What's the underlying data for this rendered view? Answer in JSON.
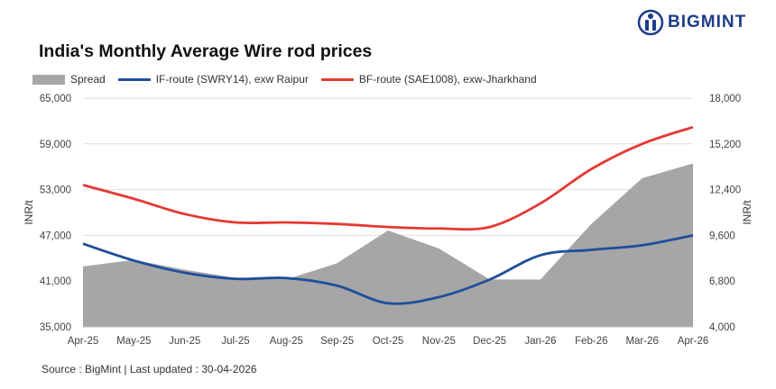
{
  "brand": {
    "name": "BIGMINT",
    "color": "#1f3c88"
  },
  "source_text": "Source : BigMint | Last updated : 30-04-2026",
  "chart_data": {
    "type": "line",
    "title": "India's Monthly Average Wire rod prices",
    "categories": [
      "Apr-25",
      "May-25",
      "Jun-25",
      "Jul-25",
      "Aug-25",
      "Sep-25",
      "Oct-25",
      "Nov-25",
      "Dec-25",
      "Jan-26",
      "Feb-26",
      "Mar-26",
      "Apr-26"
    ],
    "ylabel_left": "INR/t",
    "ylabel_right": "INR/t",
    "ylim_left": [
      35000,
      65000
    ],
    "ylim_right": [
      4000,
      18000
    ],
    "yticks_left": [
      "35,000",
      "41,000",
      "47,000",
      "53,000",
      "59,000",
      "65,000"
    ],
    "yticks_right": [
      "4,000",
      "6,800",
      "9,600",
      "12,400",
      "15,200",
      "18,000"
    ],
    "grid": true,
    "legend_position": "top-left",
    "series": [
      {
        "name": "Spread",
        "kind": "area",
        "axis": "right",
        "color": "#a6a6a6",
        "values": [
          7700,
          8100,
          7500,
          7000,
          6900,
          7900,
          9900,
          8800,
          6900,
          6900,
          10300,
          13100,
          14000
        ]
      },
      {
        "name": "IF-route (SWRY14), exw Raipur",
        "kind": "line",
        "axis": "left",
        "color": "#1f4e9b",
        "values": [
          45900,
          43700,
          42100,
          41300,
          41400,
          40400,
          38100,
          38900,
          41200,
          44400,
          45100,
          45700,
          47000
        ]
      },
      {
        "name": "BF-route (SAE1008), exw-Jharkhand",
        "kind": "line",
        "axis": "left",
        "color": "#e53935",
        "values": [
          53600,
          51800,
          49800,
          48700,
          48700,
          48500,
          48100,
          47900,
          48100,
          51200,
          55700,
          59000,
          61200
        ]
      }
    ]
  }
}
